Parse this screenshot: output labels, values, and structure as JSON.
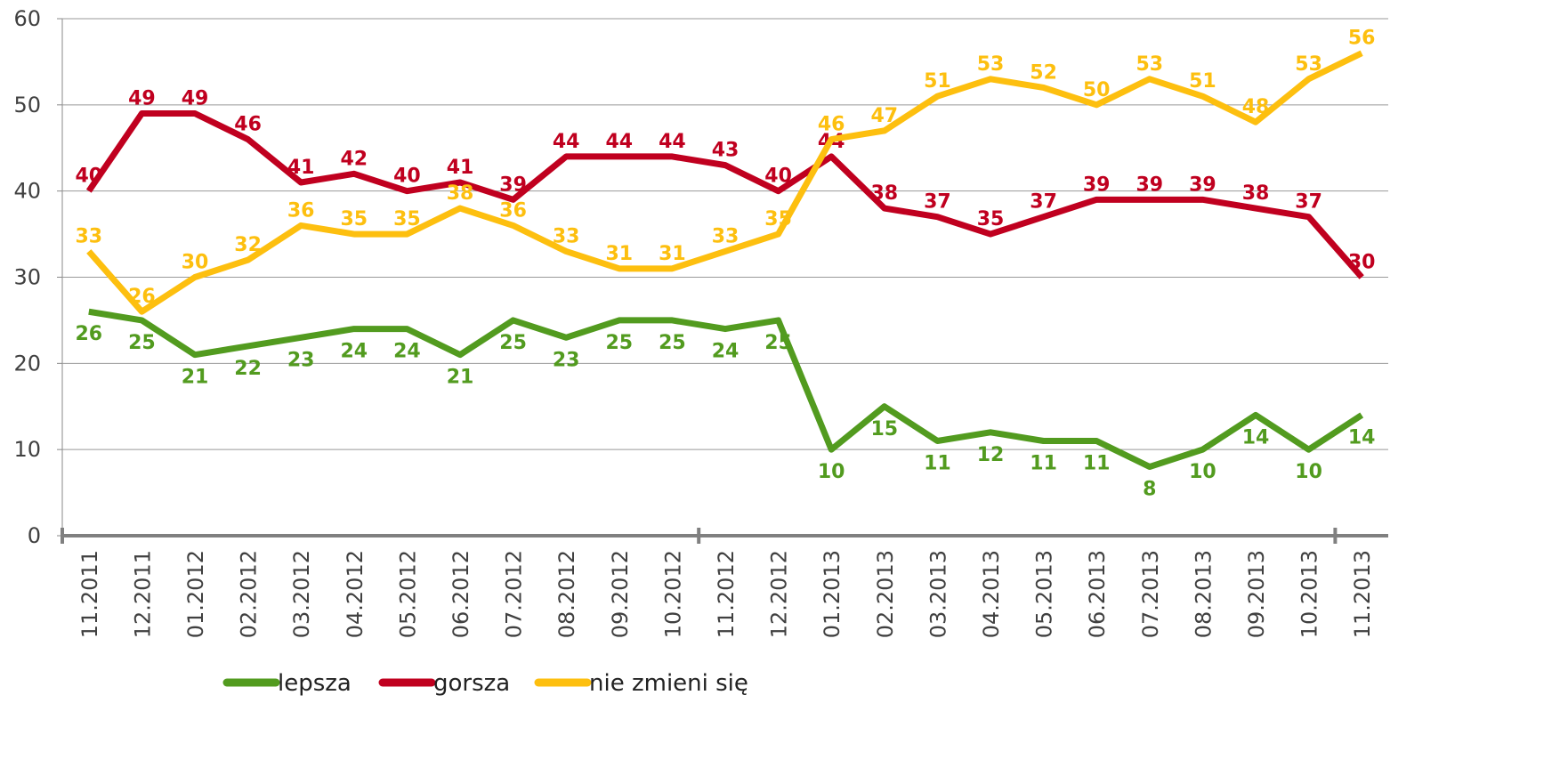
{
  "chart_data": {
    "type": "line",
    "categories": [
      "11.2011",
      "12.2011",
      "01.2012",
      "02.2012",
      "03.2012",
      "04.2012",
      "05.2012",
      "06.2012",
      "07.2012",
      "08.2012",
      "09.2012",
      "10.2012",
      "11.2012",
      "12.2012",
      "01.2013",
      "02.2013",
      "03.2013",
      "04.2013",
      "05.2013",
      "06.2013",
      "07.2013",
      "08.2013",
      "09.2013",
      "10.2013",
      "11.2013"
    ],
    "series": [
      {
        "name": "lepsza",
        "color": "#529b1f",
        "values": [
          26,
          25,
          21,
          22,
          23,
          24,
          24,
          21,
          25,
          23,
          25,
          25,
          24,
          25,
          10,
          15,
          11,
          12,
          11,
          11,
          8,
          10,
          14,
          10,
          14
        ]
      },
      {
        "name": "gorsza",
        "color": "#c0001f",
        "values": [
          40,
          49,
          49,
          46,
          41,
          42,
          40,
          41,
          39,
          44,
          44,
          44,
          43,
          40,
          44,
          38,
          37,
          35,
          37,
          39,
          39,
          39,
          38,
          37,
          30
        ]
      },
      {
        "name": "nie zmieni się",
        "color": "#fdbf0f",
        "values": [
          33,
          26,
          30,
          32,
          36,
          35,
          35,
          38,
          36,
          33,
          31,
          31,
          33,
          35,
          46,
          47,
          51,
          53,
          52,
          50,
          53,
          51,
          48,
          53,
          56
        ]
      }
    ],
    "ylim": [
      0,
      60
    ],
    "yticks": [
      0,
      10,
      20,
      30,
      40,
      50,
      60
    ],
    "grid": true,
    "legend": "bottom"
  }
}
